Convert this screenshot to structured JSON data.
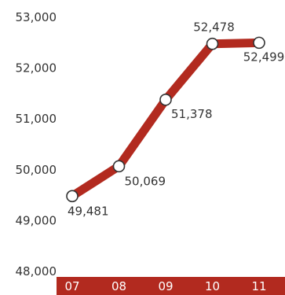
{
  "chart_data": {
    "type": "line",
    "categories": [
      "07",
      "08",
      "09",
      "10",
      "11"
    ],
    "values": [
      49481,
      50069,
      51378,
      52478,
      52499
    ],
    "value_labels": [
      "49,481",
      "50,069",
      "51,378",
      "52,478",
      "52,499"
    ],
    "yticks": [
      "48,000",
      "49,000",
      "50,000",
      "51,000",
      "52,000",
      "53,000"
    ],
    "ylim": [
      48000,
      53000
    ],
    "title": "",
    "xlabel": "",
    "ylabel": "",
    "grid": false,
    "legend": "none",
    "line_color": "#b22a1f",
    "marker_fill": "#ffffff",
    "marker_stroke": "#333333",
    "xaxis_band_color": "#b22a1f",
    "xtick_color": "#ffffff",
    "text_color": "#333333"
  }
}
